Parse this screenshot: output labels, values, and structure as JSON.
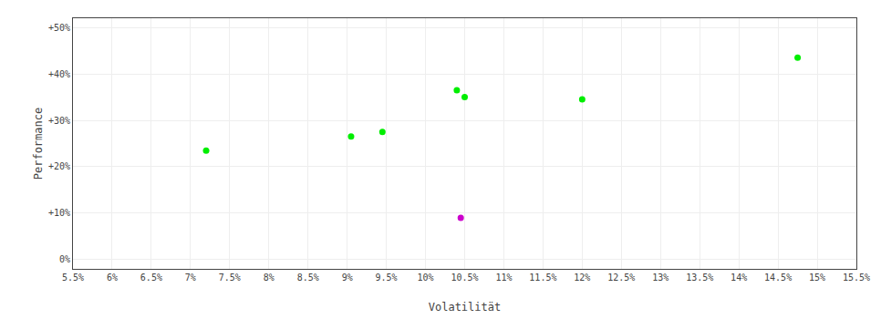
{
  "chart_data": {
    "type": "scatter",
    "xlabel": "Volatilität",
    "ylabel": "Performance",
    "series": [
      {
        "color": "#00ee00",
        "marker": "circle",
        "x": [
          7.2,
          9.05,
          9.45,
          10.4,
          10.5,
          12.0,
          14.75
        ],
        "values": [
          23.5,
          26.5,
          27.5,
          36.5,
          35.0,
          34.5,
          43.5
        ]
      },
      {
        "color": "#cc00cc",
        "marker": "circle",
        "x": [
          10.45
        ],
        "values": [
          9.0
        ]
      }
    ],
    "xlim": [
      5.5,
      15.5
    ],
    "ylim": [
      -2,
      52
    ],
    "xticks": [
      {
        "value": 5.5,
        "label": "5.5%"
      },
      {
        "value": 6.0,
        "label": "6%"
      },
      {
        "value": 6.5,
        "label": "6.5%"
      },
      {
        "value": 7.0,
        "label": "7%"
      },
      {
        "value": 7.5,
        "label": "7.5%"
      },
      {
        "value": 8.0,
        "label": "8%"
      },
      {
        "value": 8.5,
        "label": "8.5%"
      },
      {
        "value": 9.0,
        "label": "9%"
      },
      {
        "value": 9.5,
        "label": "9.5%"
      },
      {
        "value": 10.0,
        "label": "10%"
      },
      {
        "value": 10.5,
        "label": "10.5%"
      },
      {
        "value": 11.0,
        "label": "11%"
      },
      {
        "value": 11.5,
        "label": "11.5%"
      },
      {
        "value": 12.0,
        "label": "12%"
      },
      {
        "value": 12.5,
        "label": "12.5%"
      },
      {
        "value": 13.0,
        "label": "13%"
      },
      {
        "value": 13.5,
        "label": "13.5%"
      },
      {
        "value": 14.0,
        "label": "14%"
      },
      {
        "value": 14.5,
        "label": "14.5%"
      },
      {
        "value": 15.0,
        "label": "15%"
      },
      {
        "value": 15.5,
        "label": "15.5%"
      }
    ],
    "yticks": [
      {
        "value": 0,
        "label": "0%"
      },
      {
        "value": 10,
        "label": "+10%"
      },
      {
        "value": 20,
        "label": "+20%"
      },
      {
        "value": 30,
        "label": "+30%"
      },
      {
        "value": 40,
        "label": "+40%"
      },
      {
        "value": 50,
        "label": "+50%"
      }
    ],
    "grid": true
  }
}
